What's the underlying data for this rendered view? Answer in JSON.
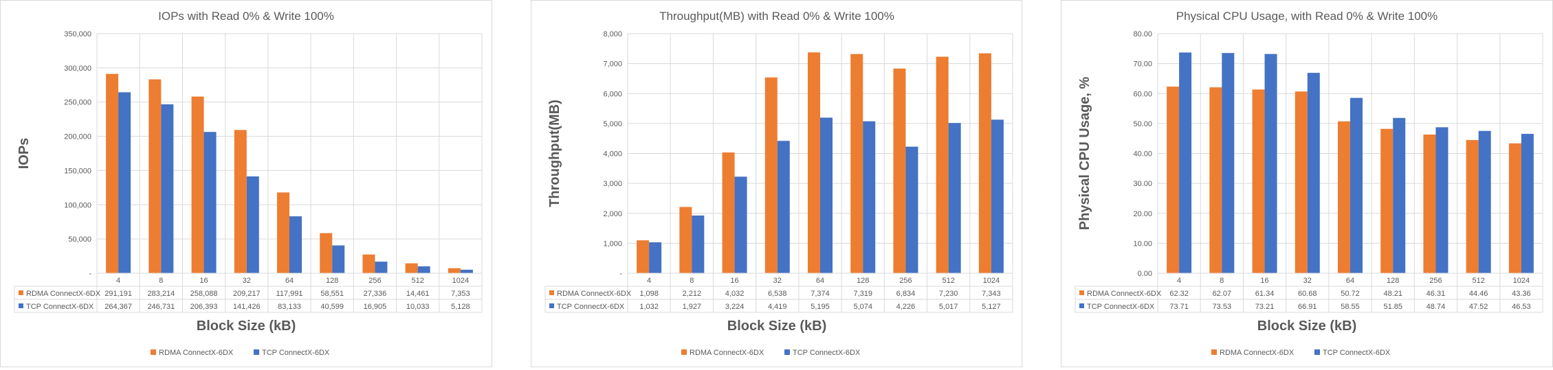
{
  "colors": {
    "rdma": "#ED7D31",
    "tcp": "#4472C4",
    "grid": "#d9d9d9",
    "text": "#595959"
  },
  "chart_data": [
    {
      "type": "bar",
      "title": "IOPs with Read 0% & Write 100%",
      "xlabel": "Block Size (kB)",
      "ylabel": "IOPs",
      "categories": [
        "4",
        "8",
        "16",
        "32",
        "64",
        "128",
        "256",
        "512",
        "1024"
      ],
      "ylim": [
        0,
        350000
      ],
      "yticks": [
        "-",
        "50,000",
        "100,000",
        "150,000",
        "200,000",
        "250,000",
        "300,000",
        "350,000"
      ],
      "grid": true,
      "legend": "bottom",
      "series": [
        {
          "name": "RDMA ConnectX-6DX",
          "color": "#ED7D31",
          "values": [
            291191,
            283214,
            258088,
            209217,
            117991,
            58551,
            27336,
            14461,
            7353
          ],
          "labels": [
            "291,191",
            "283,214",
            "258,088",
            "209,217",
            "117,991",
            "58,551",
            "27,336",
            "14,461",
            "7,353"
          ]
        },
        {
          "name": "TCP ConnectX-6DX",
          "color": "#4472C4",
          "values": [
            264367,
            246731,
            206393,
            141426,
            83133,
            40599,
            16905,
            10033,
            5128
          ],
          "labels": [
            "264,367",
            "246,731",
            "206,393",
            "141,426",
            "83,133",
            "40,599",
            "16,905",
            "10,033",
            "5,128"
          ]
        }
      ]
    },
    {
      "type": "bar",
      "title": "Throughput(MB) with Read 0% & Write 100%",
      "xlabel": "Block Size (kB)",
      "ylabel": "Throughput(MB)",
      "categories": [
        "4",
        "8",
        "16",
        "32",
        "64",
        "128",
        "256",
        "512",
        "1024"
      ],
      "ylim": [
        0,
        8000
      ],
      "yticks": [
        "-",
        "1,000",
        "2,000",
        "3,000",
        "4,000",
        "5,000",
        "6,000",
        "7,000",
        "8,000"
      ],
      "grid": true,
      "legend": "bottom",
      "series": [
        {
          "name": "RDMA ConnectX-6DX",
          "color": "#ED7D31",
          "values": [
            1098,
            2212,
            4032,
            6538,
            7374,
            7319,
            6834,
            7230,
            7343
          ],
          "labels": [
            "1,098",
            "2,212",
            "4,032",
            "6,538",
            "7,374",
            "7,319",
            "6,834",
            "7,230",
            "7,343"
          ]
        },
        {
          "name": "TCP ConnectX-6DX",
          "color": "#4472C4",
          "values": [
            1032,
            1927,
            3224,
            4419,
            5195,
            5074,
            4226,
            5017,
            5127
          ],
          "labels": [
            "1,032",
            "1,927",
            "3,224",
            "4,419",
            "5,195",
            "5,074",
            "4,226",
            "5,017",
            "5,127"
          ]
        }
      ]
    },
    {
      "type": "bar",
      "title": "Physical CPU Usage, with Read 0% & Write 100%",
      "xlabel": "Block Size (kB)",
      "ylabel": "Physical CPU Usage, %",
      "categories": [
        "4",
        "8",
        "16",
        "32",
        "64",
        "128",
        "256",
        "512",
        "1024"
      ],
      "ylim": [
        0,
        80
      ],
      "yticks": [
        "0.00",
        "10.00",
        "20.00",
        "30.00",
        "40.00",
        "50.00",
        "60.00",
        "70.00",
        "80.00"
      ],
      "grid": true,
      "legend": "bottom",
      "series": [
        {
          "name": "RDMA ConnectX-6DX",
          "color": "#ED7D31",
          "values": [
            62.32,
            62.07,
            61.34,
            60.68,
            50.72,
            48.21,
            46.31,
            44.46,
            43.36
          ],
          "labels": [
            "62.32",
            "62.07",
            "61.34",
            "60.68",
            "50.72",
            "48.21",
            "46.31",
            "44.46",
            "43.36"
          ]
        },
        {
          "name": "TCP ConnectX-6DX",
          "color": "#4472C4",
          "values": [
            73.71,
            73.53,
            73.21,
            66.91,
            58.55,
            51.85,
            48.74,
            47.52,
            46.53
          ],
          "labels": [
            "73.71",
            "73.53",
            "73.21",
            "66.91",
            "58.55",
            "51.85",
            "48.74",
            "47.52",
            "46.53"
          ]
        }
      ]
    }
  ]
}
